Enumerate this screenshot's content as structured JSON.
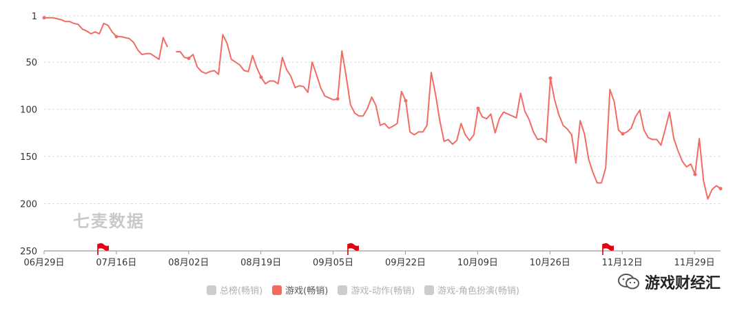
{
  "chart_data": {
    "type": "line",
    "y_inverted": true,
    "ylim": [
      1,
      250
    ],
    "y_ticks": [
      1,
      50,
      100,
      150,
      200,
      250
    ],
    "x_tick_labels": [
      "06月29日",
      "07月16日",
      "08月02日",
      "08月19日",
      "09月05日",
      "09月22日",
      "10月09日",
      "10月26日",
      "11月12日",
      "11月29日"
    ],
    "grid": true,
    "flag_dates": [
      "07月13日",
      "09月08日",
      "11月10日"
    ],
    "series": [
      {
        "name": "游戏(畅销)",
        "color": "#f26b63",
        "segments": [
          [
            [
              0,
              3
            ],
            [
              1,
              3
            ],
            [
              2,
              3
            ],
            [
              3,
              4
            ],
            [
              4,
              5
            ],
            [
              5,
              7
            ],
            [
              6,
              7
            ],
            [
              7,
              9
            ],
            [
              8,
              10
            ],
            [
              9,
              15
            ],
            [
              10,
              17
            ],
            [
              11,
              20
            ],
            [
              12,
              18
            ],
            [
              13,
              20
            ],
            [
              14,
              9
            ],
            [
              15,
              11
            ],
            [
              16,
              18
            ],
            [
              17,
              23
            ],
            [
              18,
              23
            ],
            [
              19,
              24
            ],
            [
              20,
              25
            ],
            [
              21,
              29
            ],
            [
              22,
              37
            ],
            [
              23,
              42
            ],
            [
              24,
              41
            ],
            [
              25,
              41
            ],
            [
              26,
              44
            ],
            [
              27,
              47
            ],
            [
              28,
              24
            ],
            [
              29,
              34
            ]
          ],
          [
            [
              31,
              39
            ],
            [
              32,
              39
            ],
            [
              33,
              45
            ],
            [
              34,
              46
            ],
            [
              35,
              42
            ],
            [
              36,
              55
            ],
            [
              37,
              60
            ],
            [
              38,
              62
            ],
            [
              39,
              60
            ],
            [
              40,
              59
            ],
            [
              41,
              63
            ],
            [
              42,
              21
            ],
            [
              43,
              30
            ],
            [
              44,
              47
            ],
            [
              45,
              50
            ],
            [
              46,
              53
            ],
            [
              47,
              59
            ],
            [
              48,
              60
            ],
            [
              49,
              43
            ],
            [
              50,
              56
            ],
            [
              51,
              66
            ],
            [
              52,
              73
            ],
            [
              53,
              70
            ],
            [
              54,
              70
            ],
            [
              55,
              73
            ],
            [
              56,
              45
            ],
            [
              57,
              58
            ],
            [
              58,
              65
            ],
            [
              59,
              77
            ],
            [
              60,
              75
            ],
            [
              61,
              76
            ],
            [
              62,
              82
            ],
            [
              63,
              50
            ],
            [
              64,
              63
            ],
            [
              65,
              77
            ],
            [
              66,
              86
            ],
            [
              67,
              88
            ],
            [
              68,
              90
            ],
            [
              69,
              89
            ],
            [
              70,
              38
            ],
            [
              71,
              65
            ],
            [
              72,
              95
            ],
            [
              73,
              104
            ],
            [
              74,
              107
            ],
            [
              75,
              107
            ],
            [
              76,
              99
            ],
            [
              77,
              87
            ],
            [
              78,
              96
            ],
            [
              79,
              117
            ],
            [
              80,
              115
            ],
            [
              81,
              120
            ],
            [
              82,
              118
            ],
            [
              83,
              115
            ],
            [
              84,
              81
            ],
            [
              85,
              91
            ],
            [
              86,
              124
            ],
            [
              87,
              127
            ],
            [
              88,
              124
            ],
            [
              89,
              124
            ],
            [
              90,
              117
            ],
            [
              91,
              61
            ],
            [
              92,
              84
            ],
            [
              93,
              112
            ],
            [
              94,
              134
            ],
            [
              95,
              132
            ],
            [
              96,
              137
            ],
            [
              97,
              133
            ],
            [
              98,
              115
            ],
            [
              99,
              127
            ],
            [
              100,
              133
            ],
            [
              101,
              127
            ],
            [
              102,
              99
            ],
            [
              103,
              108
            ],
            [
              104,
              110
            ],
            [
              105,
              105
            ],
            [
              106,
              125
            ],
            [
              107,
              110
            ],
            [
              108,
              103
            ],
            [
              109,
              105
            ],
            [
              110,
              107
            ],
            [
              111,
              109
            ],
            [
              112,
              83
            ],
            [
              113,
              102
            ],
            [
              114,
              111
            ],
            [
              115,
              124
            ],
            [
              116,
              132
            ],
            [
              117,
              131
            ],
            [
              118,
              135
            ],
            [
              119,
              67
            ],
            [
              120,
              90
            ],
            [
              121,
              106
            ],
            [
              122,
              117
            ],
            [
              123,
              121
            ],
            [
              124,
              127
            ],
            [
              125,
              157
            ],
            [
              126,
              112
            ],
            [
              127,
              126
            ],
            [
              128,
              153
            ],
            [
              129,
              167
            ],
            [
              130,
              178
            ],
            [
              131,
              178
            ],
            [
              132,
              162
            ],
            [
              133,
              79
            ],
            [
              134,
              92
            ],
            [
              135,
              122
            ],
            [
              136,
              126
            ],
            [
              137,
              124
            ],
            [
              138,
              120
            ],
            [
              139,
              108
            ],
            [
              140,
              101
            ],
            [
              141,
              122
            ],
            [
              142,
              130
            ],
            [
              143,
              132
            ],
            [
              144,
              132
            ],
            [
              145,
              138
            ],
            [
              146,
              121
            ],
            [
              147,
              103
            ],
            [
              148,
              131
            ],
            [
              149,
              144
            ],
            [
              150,
              155
            ],
            [
              151,
              161
            ],
            [
              152,
              158
            ],
            [
              153,
              169
            ],
            [
              154,
              131
            ],
            [
              155,
              176
            ],
            [
              156,
              195
            ],
            [
              157,
              185
            ],
            [
              158,
              181
            ],
            [
              159,
              184
            ]
          ]
        ]
      }
    ],
    "watermark": "七麦数据"
  },
  "legend": [
    {
      "label": "总榜(畅销)",
      "color": "#cccccc",
      "active": false
    },
    {
      "label": "游戏(畅销)",
      "color": "#f26b63",
      "active": true
    },
    {
      "label": "游戏-动作(畅销)",
      "color": "#cccccc",
      "active": false
    },
    {
      "label": "游戏-角色扮演(畅销)",
      "color": "#cccccc",
      "active": false
    }
  ],
  "brand": {
    "label": "游戏财经汇"
  }
}
